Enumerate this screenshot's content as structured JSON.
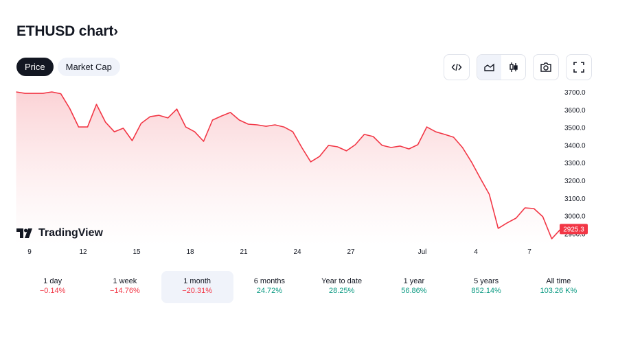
{
  "header": {
    "title": "ETHUSD chart",
    "chevron": "›"
  },
  "tabs": [
    {
      "label": "Price",
      "active": true
    },
    {
      "label": "Market Cap",
      "active": false
    }
  ],
  "toolbar": {
    "icons": [
      "embed-code-icon",
      "area-chart-icon",
      "candlestick-icon",
      "camera-icon",
      "fullscreen-icon"
    ]
  },
  "logo": {
    "text": "TradingView"
  },
  "colors": {
    "line": "#f23645",
    "fill_top": "#fbd3d6",
    "positive": "#089981",
    "negative": "#f23645"
  },
  "chart_data": {
    "type": "area",
    "x_start": "Jun 8 06:00",
    "interval_hours": 12,
    "values": [
      3700,
      3692,
      3692,
      3692,
      3700,
      3690,
      3607,
      3502,
      3502,
      3630,
      3530,
      3475,
      3495,
      3425,
      3522,
      3560,
      3568,
      3553,
      3603,
      3502,
      3475,
      3421,
      3541,
      3564,
      3584,
      3541,
      3518,
      3514,
      3506,
      3514,
      3502,
      3475,
      3386,
      3305,
      3336,
      3398,
      3390,
      3367,
      3402,
      3460,
      3448,
      3398,
      3386,
      3394,
      3378,
      3402,
      3502,
      3475,
      3460,
      3444,
      3386,
      3305,
      3212,
      3122,
      2929,
      2960,
      2987,
      3045,
      3041,
      2995,
      2870,
      2925.3
    ],
    "ylim": [
      2880,
      3720
    ],
    "yticks": [
      "3700.0",
      "3600.0",
      "3500.0",
      "3400.0",
      "3300.0",
      "3200.0",
      "3100.0",
      "3000.0",
      "2900.0"
    ],
    "xticks": [
      {
        "label": "9",
        "date": "Jun 9"
      },
      {
        "label": "12",
        "date": "Jun 12"
      },
      {
        "label": "15",
        "date": "Jun 15"
      },
      {
        "label": "18",
        "date": "Jun 18"
      },
      {
        "label": "21",
        "date": "Jun 21"
      },
      {
        "label": "24",
        "date": "Jun 24"
      },
      {
        "label": "27",
        "date": "Jun 27"
      },
      {
        "label": "Jul",
        "date": "Jul 1"
      },
      {
        "label": "4",
        "date": "Jul 4"
      },
      {
        "label": "7",
        "date": "Jul 7"
      }
    ],
    "last_price": "2925.3",
    "grid": false
  },
  "periods": [
    {
      "label": "1 day",
      "change": "−0.14%",
      "dir": "neg"
    },
    {
      "label": "1 week",
      "change": "−14.76%",
      "dir": "neg"
    },
    {
      "label": "1 month",
      "change": "−20.31%",
      "dir": "neg",
      "selected": true
    },
    {
      "label": "6 months",
      "change": "24.72%",
      "dir": "pos"
    },
    {
      "label": "Year to date",
      "change": "28.25%",
      "dir": "pos"
    },
    {
      "label": "1 year",
      "change": "56.86%",
      "dir": "pos"
    },
    {
      "label": "5 years",
      "change": "852.14%",
      "dir": "pos"
    },
    {
      "label": "All time",
      "change": "103.26 K%",
      "dir": "pos"
    }
  ]
}
